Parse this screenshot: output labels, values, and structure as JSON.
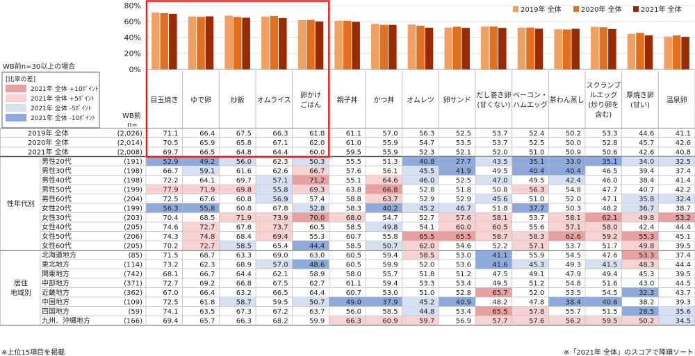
{
  "chart_data": {
    "type": "bar",
    "ylim": [
      0,
      80
    ],
    "yticks": [
      "0%",
      "20%",
      "40%",
      "60%",
      "80%"
    ],
    "categories": [
      "目玉焼き",
      "ゆで卵",
      "炒飯",
      "オムライス",
      "卵かけ\nごはん",
      "親子丼",
      "かつ丼",
      "オムレツ",
      "卵サンド",
      "だし巻き卵\n(甘くない)",
      "ベーコン・\nハムエッグ",
      "茶わん蒸し",
      "スクランブ\nルエッグ\n(炒り卵を\n含む)",
      "厚焼き卵\n(甘い)",
      "温泉卵"
    ],
    "series": [
      {
        "name": "2019年 全体",
        "color": "#f0a060",
        "values": [
          71.1,
          66.4,
          67.5,
          66.3,
          61.8,
          61.1,
          57.0,
          56.3,
          52.5,
          53.7,
          52.4,
          50.2,
          53.3,
          44.6,
          41.1
        ]
      },
      {
        "name": "2020年 全体",
        "color": "#e07020",
        "values": [
          70.5,
          65.9,
          65.8,
          67.1,
          62.0,
          61.0,
          55.9,
          54.7,
          53.5,
          53.7,
          52.5,
          50.0,
          52.8,
          45.7,
          42.6
        ]
      },
      {
        "name": "2021年 全体",
        "color": "#9a2a00",
        "values": [
          69.7,
          66.5,
          64.8,
          64.4,
          60.0,
          59.5,
          55.9,
          52.3,
          52.1,
          52.0,
          51.0,
          50.9,
          50.6,
          42.6,
          40.8
        ]
      }
    ]
  },
  "left_notes": {
    "wb_condition": "WB前n=30以上の場合",
    "legend_title": "[比率の差]",
    "legend_items": [
      {
        "label": "2021年 全体 +10ﾎﾟｲﾝﾄ",
        "color": "#e8a0a0"
      },
      {
        "label": "2021年 全体 +5ﾎﾟｲﾝﾄ",
        "color": "#f6d2d2"
      },
      {
        "label": "2021年 全体 -5ﾎﾟｲﾝﾄ",
        "color": "#d6e0f2"
      },
      {
        "label": "2021年 全体 -10ﾎﾟｲﾝﾄ",
        "color": "#8eaadb"
      }
    ],
    "wb_label": "WB前",
    "n_label": "n=",
    "footer_left": "※上位15項目を掲載",
    "footer_right": "※「2021年 全体」のスコアで降順ソート"
  },
  "table": {
    "total_rows": [
      {
        "label": "2019年 全体",
        "n": "(2,026)",
        "values": [
          71.1,
          66.4,
          67.5,
          66.3,
          61.8,
          61.1,
          57.0,
          56.3,
          52.5,
          53.7,
          52.4,
          50.2,
          53.3,
          44.6,
          41.1
        ]
      },
      {
        "label": "2020年 全体",
        "n": "(2,014)",
        "values": [
          70.5,
          65.9,
          65.8,
          67.1,
          62.0,
          61.0,
          55.9,
          54.7,
          53.5,
          53.7,
          52.5,
          50.0,
          52.8,
          45.7,
          42.6
        ]
      },
      {
        "label": "2021年 全体",
        "n": "(2,008)",
        "values": [
          69.7,
          66.5,
          64.8,
          64.4,
          60.0,
          59.5,
          55.9,
          52.3,
          52.1,
          52.0,
          51.0,
          50.9,
          50.6,
          42.6,
          40.8
        ]
      }
    ],
    "groups": [
      {
        "label": "性年代別",
        "rows": [
          {
            "label": "男性20代",
            "n": "(191)",
            "values": [
              52.9,
              49.2,
              56.0,
              62.3,
              50.3,
              55.5,
              51.3,
              40.8,
              27.7,
              43.5,
              35.1,
              33.0,
              35.1,
              34.0,
              32.5
            ]
          },
          {
            "label": "男性30代",
            "n": "(198)",
            "values": [
              66.7,
              59.1,
              61.6,
              62.6,
              66.7,
              57.6,
              56.1,
              45.5,
              41.9,
              49.5,
              40.4,
              40.4,
              46.5,
              39.4,
              37.4
            ]
          },
          {
            "label": "男性40代",
            "n": "(198)",
            "values": [
              72.2,
              64.1,
              69.7,
              57.1,
              71.2,
              55.1,
              64.6,
              46.0,
              52.5,
              47.0,
              49.5,
              42.4,
              46.0,
              38.4,
              41.4
            ]
          },
          {
            "label": "男性50代",
            "n": "(199)",
            "values": [
              77.9,
              71.9,
              69.8,
              55.8,
              69.3,
              63.8,
              66.8,
              52.8,
              51.8,
              50.8,
              56.3,
              54.8,
              47.7,
              40.7,
              42.2
            ]
          },
          {
            "label": "男性60代",
            "n": "(204)",
            "values": [
              72.5,
              67.6,
              60.8,
              56.9,
              57.4,
              58.8,
              63.7,
              52.9,
              52.9,
              45.6,
              51.0,
              52.0,
              47.1,
              35.8,
              32.4
            ]
          },
          {
            "label": "女性20代",
            "n": "(199)",
            "values": [
              56.3,
              55.8,
              60.8,
              67.8,
              52.8,
              58.3,
              40.2,
              45.2,
              46.7,
              51.8,
              37.7,
              50.3,
              48.2,
              36.7,
              38.7
            ]
          },
          {
            "label": "女性30代",
            "n": "(203)",
            "values": [
              70.4,
              68.5,
              71.9,
              73.9,
              70.0,
              68.0,
              54.7,
              52.7,
              57.6,
              58.1,
              53.7,
              58.1,
              62.1,
              49.8,
              53.2
            ]
          },
          {
            "label": "女性40代",
            "n": "(205)",
            "values": [
              74.6,
              72.7,
              67.8,
              73.7,
              60.5,
              58.5,
              49.8,
              54.1,
              60.0,
              60.5,
              55.6,
              57.1,
              58.0,
              42.4,
              44.4
            ]
          },
          {
            "label": "女性50代",
            "n": "(206)",
            "values": [
              74.3,
              74.8,
              68.4,
              69.4,
              55.3,
              60.7,
              55.8,
              65.5,
              65.5,
              58.7,
              58.3,
              62.6,
              59.2,
              55.3,
              45.1
            ]
          },
          {
            "label": "女性60代",
            "n": "(205)",
            "values": [
              70.2,
              72.7,
              58.5,
              65.4,
              44.4,
              58.5,
              50.7,
              62.0,
              54.6,
              52.2,
              57.1,
              53.7,
              51.7,
              49.8,
              39.5
            ]
          }
        ]
      },
      {
        "label": "居住\n地域別",
        "rows": [
          {
            "label": "北海道地方",
            "n": "(85)",
            "values": [
              71.5,
              68.7,
              63.3,
              69.0,
              63.0,
              60.5,
              59.4,
              58.5,
              53.0,
              41.1,
              55.9,
              54.5,
              47.6,
              53.3,
              37.4
            ]
          },
          {
            "label": "東北地方",
            "n": "(114)",
            "values": [
              73.2,
              62.3,
              68.9,
              57.0,
              48.6,
              60.5,
              59.9,
              52.0,
              53.6,
              41.6,
              45.3,
              49.3,
              41.5,
              48.3,
              44.4
            ]
          },
          {
            "label": "関東地方",
            "n": "(742)",
            "values": [
              68.1,
              66.7,
              64.4,
              62.1,
              58.9,
              58.0,
              55.7,
              51.8,
              51.2,
              47.5,
              49.1,
              47.9,
              49.4,
              45.3,
              39.5
            ]
          },
          {
            "label": "中部地方",
            "n": "(371)",
            "values": [
              72.7,
              69.2,
              66.8,
              67.5,
              62.7,
              61.1,
              59.4,
              53.3,
              53.4,
              49.5,
              51.2,
              54.8,
              51.6,
              43.0,
              44.5
            ]
          },
          {
            "label": "近畿地方",
            "n": "(362)",
            "values": [
              67.0,
              66.4,
              63.2,
              66.5,
              64.4,
              60.7,
              53.0,
              51.0,
              52.8,
              65.7,
              52.0,
              53.5,
              54.5,
              32.3,
              43.7
            ]
          },
          {
            "label": "中国地方",
            "n": "(109)",
            "values": [
              72.5,
              61.8,
              58.7,
              59.5,
              50.7,
              49.0,
              37.9,
              45.2,
              40.9,
              48.2,
              47.8,
              38.4,
              40.6,
              38.2,
              39.3
            ]
          },
          {
            "label": "四国地方",
            "n": "(59)",
            "values": [
              74.1,
              63.5,
              67.3,
              67.2,
              63.7,
              56.0,
              58.5,
              44.8,
              53.4,
              65.5,
              57.8,
              55.7,
              51.5,
              28.5,
              35.6
            ]
          },
          {
            "label": "九州、沖縄地方",
            "n": "(166)",
            "values": [
              69.4,
              65.7,
              66.3,
              68.2,
              59.9,
              66.3,
              60.9,
              59.7,
              56.9,
              57.7,
              57.6,
              56.2,
              59.5,
              50.2,
              34.5
            ]
          }
        ]
      }
    ]
  }
}
